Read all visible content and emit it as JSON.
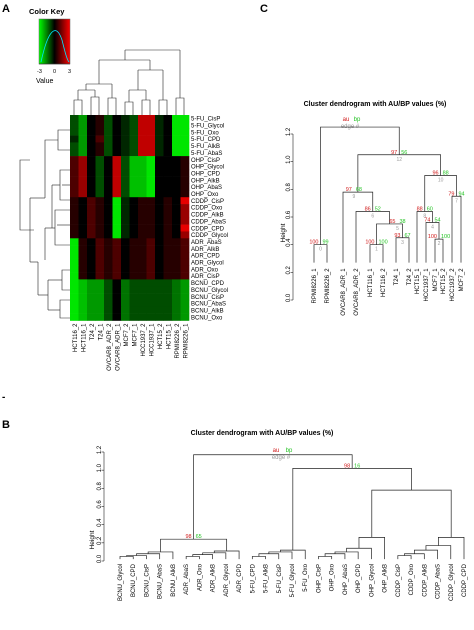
{
  "panel_labels": {
    "a": "A",
    "b": "B",
    "c": "C",
    "dash": "-"
  },
  "colors": {
    "green": "#22c222",
    "red": "#d01818",
    "gray": "#9a9a9a",
    "line": "#222222"
  },
  "panel_a": {
    "color_key": {
      "title": "Color Key",
      "ticks": [
        "-3",
        "0",
        "3"
      ],
      "label": "Value"
    },
    "rows": [
      "5-FU_CisP",
      "5-FU_Glycol",
      "5-FU_Oxo",
      "5-FU_CPD",
      "5-FU_AlkB",
      "5-FU_AbaS",
      "OHP_CisP",
      "OHP_Glycol",
      "OHP_CPD",
      "OHP_AlkB",
      "OHP_AbaS",
      "OHP_Oxo",
      "CDDP_CisP",
      "CDDP_Oxo",
      "CDDP_AlkB",
      "CDDP_AbaS",
      "CDDP_CPD",
      "CDDP_Glycol",
      "ADR_AbaS",
      "ADR_AlkB",
      "ADR_CPD",
      "ADR_Glycol",
      "ADR_Oxo",
      "ADR_CisP",
      "BCNU_CPD",
      "BCNU_Glycol",
      "BCNU_CisP",
      "BCNU_AbaS",
      "BCNU_AlkB",
      "BCNU_Oxo"
    ],
    "cols": [
      "HCT116_2",
      "HCT116_1",
      "T24_2",
      "T24_1",
      "OVCAR8_ADR_2",
      "OVCAR8_ADR_1",
      "MCF7_2",
      "MCF7_1",
      "HCC1937_2",
      "HCC1937_1",
      "HCT15_2",
      "HCT15_1",
      "RPMI8226_2",
      "RPMI8226_1"
    ],
    "heat": [
      [
        -1,
        -2,
        0,
        0.5,
        -1,
        0,
        -0.5,
        -1,
        2.5,
        2.5,
        -0.5,
        0,
        -3,
        -3
      ],
      [
        -1,
        -2,
        0,
        0.5,
        -1,
        0,
        -0.5,
        -1,
        2.5,
        2.5,
        -0.5,
        0,
        -3,
        -3
      ],
      [
        -1,
        -2,
        0,
        0.5,
        -1,
        0,
        -0.5,
        -1,
        2.5,
        2.5,
        -0.5,
        0,
        -3,
        -3
      ],
      [
        -0.5,
        -2,
        0,
        1,
        -1,
        0,
        -0.5,
        -1,
        2.5,
        2.5,
        -0.5,
        0,
        -3,
        -3
      ],
      [
        -1,
        -2,
        0,
        0.5,
        -1,
        0,
        -0.5,
        -1,
        2.5,
        2.5,
        -0.5,
        0,
        -3,
        -3
      ],
      [
        -1,
        -2,
        0,
        0.5,
        -1,
        0,
        -0.5,
        -1,
        2.5,
        2.5,
        -0.5,
        0,
        -3,
        -3
      ],
      [
        1,
        2,
        0,
        -1,
        0,
        2.5,
        -1,
        -2.5,
        -2.5,
        -3,
        0,
        0,
        0,
        0.5
      ],
      [
        1,
        2,
        0,
        -1,
        0,
        2.5,
        -1,
        -2.5,
        -2.5,
        -3,
        0,
        0,
        0,
        0.5
      ],
      [
        1,
        2,
        0,
        -1,
        0,
        2.5,
        -1,
        -2.5,
        -2.5,
        -3,
        0,
        0,
        0,
        0.5
      ],
      [
        1,
        2,
        0,
        -1,
        0,
        2.5,
        -1,
        -2.5,
        -2.5,
        -3,
        0,
        0,
        0,
        0.5
      ],
      [
        1,
        2,
        0,
        -1,
        0,
        2.5,
        -1,
        -2.5,
        -2.5,
        -3,
        0,
        0,
        0,
        0.5
      ],
      [
        1,
        2,
        0,
        -1,
        0,
        2.5,
        -1,
        -2.5,
        -2.5,
        -3,
        0,
        0,
        0,
        0.5
      ],
      [
        0.5,
        0,
        1,
        0.5,
        0,
        -3,
        -0.5,
        0,
        0.5,
        0.5,
        0,
        0.5,
        0,
        3
      ],
      [
        0.5,
        0,
        1,
        0.5,
        0,
        -3,
        -0.5,
        0,
        0.5,
        0.5,
        0,
        0.5,
        0,
        2
      ],
      [
        0.5,
        0,
        1,
        0.5,
        0,
        -3,
        -0.5,
        0,
        0.5,
        0.5,
        0,
        0.5,
        0,
        2
      ],
      [
        0.5,
        0,
        1,
        0.5,
        0,
        -3,
        -0.5,
        0,
        0.5,
        0.5,
        0,
        0.5,
        0,
        2
      ],
      [
        0.5,
        0,
        1,
        0.5,
        0,
        -3,
        -0.5,
        0,
        0.5,
        0.5,
        0,
        0.5,
        0,
        3
      ],
      [
        0.5,
        0,
        1,
        0.5,
        0,
        -3,
        -0.5,
        0,
        0.5,
        0.5,
        0,
        0.5,
        0,
        2
      ],
      [
        -3,
        0.5,
        0,
        1,
        0.5,
        1,
        0,
        0.5,
        0.5,
        1,
        0,
        0.5,
        0.5,
        1
      ],
      [
        -3,
        0.5,
        0,
        1,
        0.5,
        1,
        0,
        0.5,
        0.5,
        1,
        0,
        0.5,
        0.5,
        1
      ],
      [
        -3,
        0.5,
        0,
        1,
        0.5,
        1,
        0,
        0.5,
        0.5,
        1,
        0,
        0.5,
        0.5,
        1
      ],
      [
        -3,
        0.5,
        0,
        1,
        0.5,
        1,
        0,
        0.5,
        0.5,
        1,
        0,
        0.5,
        0.5,
        1
      ],
      [
        -3,
        0.5,
        0,
        1,
        0.5,
        1,
        0,
        0.5,
        0.5,
        1,
        0,
        0.5,
        0.5,
        1
      ],
      [
        -3,
        0.5,
        0,
        1,
        0.5,
        1,
        0,
        0.5,
        0.5,
        1,
        0,
        0.5,
        0.5,
        1
      ],
      [
        -3,
        -2.5,
        -2,
        -2,
        -1,
        0,
        -1.5,
        -1,
        -1,
        -1,
        -1,
        -1,
        -1.5,
        -2
      ],
      [
        -3,
        -2.5,
        -2,
        -2,
        -1,
        0,
        -1.5,
        -1,
        -1,
        -1,
        -1,
        -1,
        -1.5,
        -2
      ],
      [
        -3,
        -2.5,
        -2,
        -2,
        -1,
        0,
        -1.5,
        -1,
        -1,
        -1,
        -1,
        -1,
        -1.5,
        -2
      ],
      [
        -3,
        -2.5,
        -2,
        -2,
        -1,
        0,
        -1.5,
        -1,
        -1,
        -1,
        -1,
        -1,
        -1.5,
        -2
      ],
      [
        -3,
        -2.5,
        -2,
        -2,
        -1,
        0,
        -1.5,
        -1,
        -1,
        -1,
        -1,
        -1,
        -1.5,
        -2
      ],
      [
        -3,
        -2.5,
        -2,
        -2,
        -1,
        0,
        -1.5,
        -1,
        -1,
        -1,
        -1,
        -1,
        -1.5,
        -2
      ]
    ]
  },
  "panel_b": {
    "title": "Cluster dendrogram with AU/BP values (%)",
    "ylabel": "Height",
    "yticks": [
      "0.0",
      "0.2",
      "0.4",
      "0.6",
      "0.8",
      "1.0",
      "1.2"
    ],
    "legend": {
      "au": "au",
      "bp": "bp",
      "edge": "edge #"
    },
    "root_values": {
      "au": "100",
      "bp": "100"
    },
    "right_values": {
      "au": "98",
      "bp": "16"
    },
    "left_values": {
      "au": "98",
      "bp": "65"
    },
    "leaves": [
      "BCNU_Glycol",
      "BCNU_CPD",
      "BCNU_CisP",
      "BCNU_AbaS",
      "BCNU_AlkB",
      "ADR_AbaS",
      "ADR_Oxo",
      "ADR_AlkB",
      "ADR_Glycol",
      "ADR_CPD",
      "5-FU_CPD",
      "5-FU_AlkB",
      "5-FU_CisP",
      "5-FU_Glycol",
      "5-FU_Oxo",
      "OHP_CisP",
      "OHP_Oxo",
      "OHP_AbaS",
      "OHP_CPD",
      "OHP_Glycol",
      "OHP_AlkB",
      "CDDP_CisP",
      "CDDP_Oxo",
      "CDDP_AlkB",
      "CDDP_AbaS",
      "CDDP_Glycol",
      "CDDP_CPD"
    ]
  },
  "panel_c": {
    "title": "Cluster dendrogram with AU/BP values (%)",
    "ylabel": "Height",
    "yticks": [
      "0.0",
      "0.2",
      "0.4",
      "0.6",
      "0.8",
      "1.0",
      "1.2"
    ],
    "legend": {
      "au": "au",
      "bp": "bp",
      "edge": "edge #"
    },
    "values": [
      {
        "au": "97",
        "bp": "56",
        "edge": "12"
      },
      {
        "au": "97",
        "bp": "68",
        "edge": "9"
      },
      {
        "au": "96",
        "bp": "88",
        "edge": "10"
      },
      {
        "au": "79",
        "bp": "94",
        "edge": "7"
      },
      {
        "au": "86",
        "bp": "52",
        "edge": "6"
      },
      {
        "au": "65",
        "bp": "38",
        "edge": "5"
      },
      {
        "au": "88",
        "bp": "60",
        "edge": "8"
      },
      {
        "au": "74",
        "bp": "54",
        "edge": "4"
      },
      {
        "au": "93",
        "bp": "67",
        "edge": "3"
      },
      {
        "au": "100",
        "bp": "100",
        "edge": "1"
      },
      {
        "au": "100",
        "bp": "100",
        "edge": "2"
      },
      {
        "au": "100",
        "bp": "99",
        "edge": "0"
      }
    ],
    "leaves": [
      "RPMI8226_1",
      "RPMI8226_2",
      "OVCAR8_ADR_1",
      "OVCAR8_ADR_2",
      "HCT116_1",
      "HCT116_2",
      "T24_1",
      "T24_2",
      "HCT15_1",
      "HCC1937_1",
      "MCF7_1",
      "HCT15_2",
      "HCC1937_2",
      "MCF7_2"
    ]
  }
}
